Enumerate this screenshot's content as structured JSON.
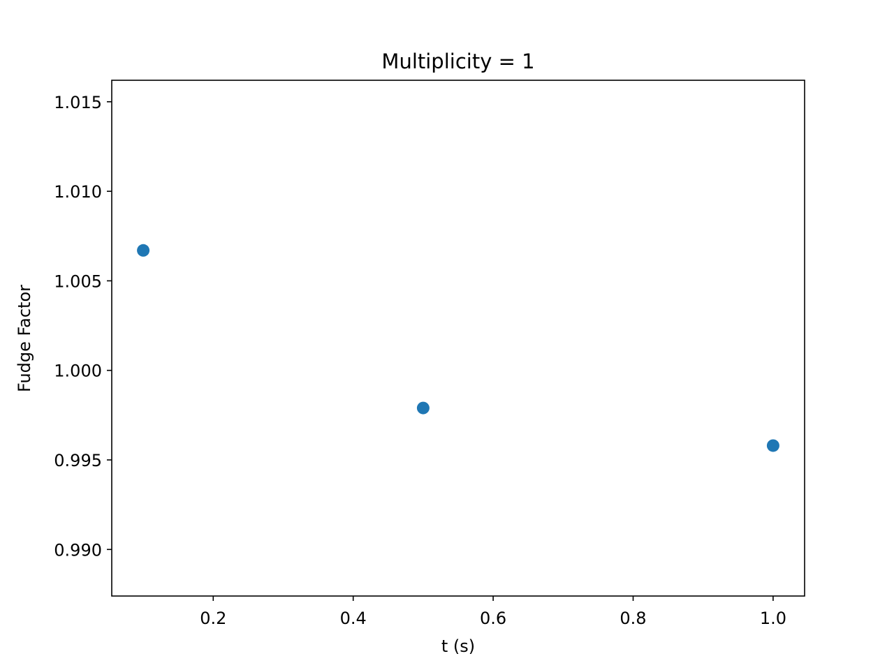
{
  "chart_data": {
    "type": "scatter",
    "title": "Multiplicity = 1",
    "xlabel": "t (s)",
    "ylabel": "Fudge Factor",
    "xlim": [
      0.055,
      1.045
    ],
    "ylim": [
      0.9874,
      1.0162
    ],
    "x_ticks": [
      0.2,
      0.4,
      0.6,
      0.8,
      1.0
    ],
    "x_tick_labels": [
      "0.2",
      "0.4",
      "0.6",
      "0.8",
      "1.0"
    ],
    "y_ticks": [
      0.99,
      0.995,
      1.0,
      1.005,
      1.01,
      1.015
    ],
    "y_tick_labels": [
      "0.990",
      "0.995",
      "1.000",
      "1.005",
      "1.010",
      "1.015"
    ],
    "grid": false,
    "series": [
      {
        "color": "#1f77b4",
        "points": [
          {
            "x": 0.1,
            "y": 1.0067
          },
          {
            "x": 0.5,
            "y": 0.9979
          },
          {
            "x": 1.0,
            "y": 0.9958
          }
        ]
      }
    ]
  }
}
